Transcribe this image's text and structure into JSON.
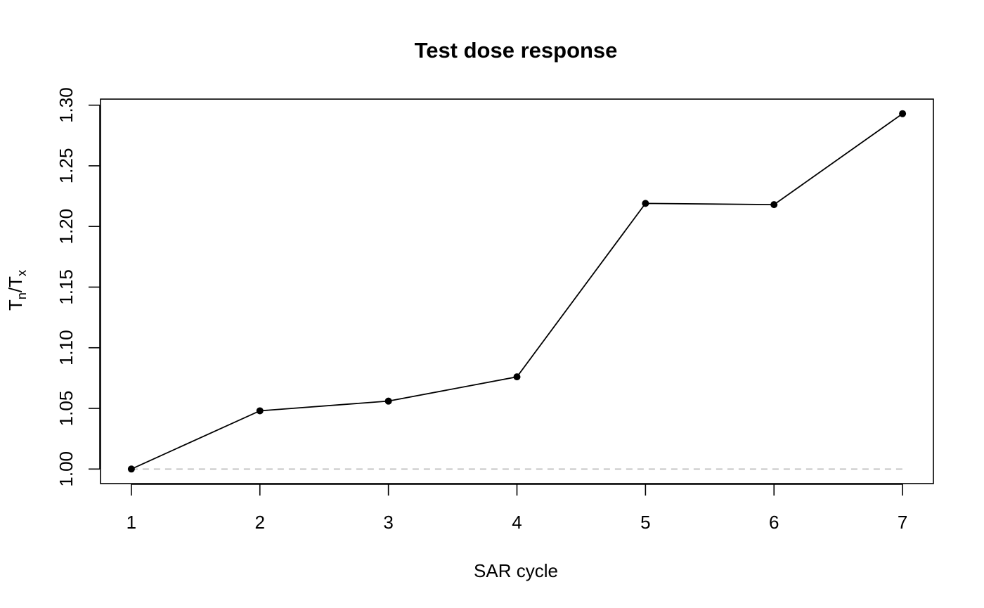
{
  "chart_data": {
    "type": "line",
    "title": "Test dose response",
    "xlabel": "SAR cycle",
    "ylabel": {
      "base": "T",
      "sub_numerator": "n",
      "slash": "/",
      "base2": "T",
      "sub_denominator": "x"
    },
    "x": [
      1,
      2,
      3,
      4,
      5,
      6,
      7
    ],
    "y": [
      1.0,
      1.048,
      1.056,
      1.076,
      1.219,
      1.218,
      1.293
    ],
    "xlim": [
      0.76,
      7.24
    ],
    "ylim": [
      0.988,
      1.305
    ],
    "x_ticks": [
      "1",
      "2",
      "3",
      "4",
      "5",
      "6",
      "7"
    ],
    "y_ticks": [
      "1.00",
      "1.05",
      "1.10",
      "1.15",
      "1.20",
      "1.25",
      "1.30"
    ],
    "reference_line": {
      "y": 1.0,
      "style": "dashed",
      "color": "#bbbbbb"
    },
    "line_color": "#000000",
    "marker": "filled-circle",
    "grid": false,
    "legend": "none"
  }
}
